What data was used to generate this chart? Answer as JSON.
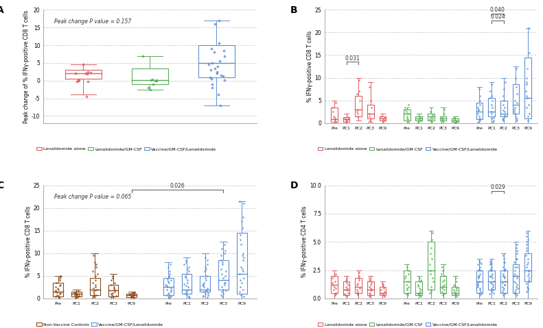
{
  "panel_A": {
    "title_label": "A",
    "annotation": "Peak change P value = 0.157",
    "ylabel": "Peak change of % IFNγ-positive CD8 T cells",
    "ylim": [
      -12,
      20
    ],
    "yticks": [
      -10,
      -5,
      0,
      5,
      10,
      15,
      20
    ],
    "colors": [
      "#e05c5c",
      "#5aaa5a",
      "#5b8fd4"
    ],
    "box_data": {
      "lena": {
        "q1": 0.5,
        "median": 2.0,
        "q3": 3.0,
        "whislo": -4.0,
        "whishi": 4.5
      },
      "gmcsf": {
        "q1": -1.0,
        "median": 0.2,
        "q3": 3.5,
        "whislo": -2.5,
        "whishi": 7.0
      },
      "vaccine": {
        "q1": 1.0,
        "median": 5.0,
        "q3": 10.0,
        "whislo": -7.0,
        "whishi": 17.0
      }
    },
    "jitter_lena": [
      2.5,
      2.0,
      2.0,
      1.8,
      4.5,
      0.2,
      0.1,
      -0.2,
      0.0,
      -0.3,
      -4.5,
      2.2
    ],
    "jitter_gmcsf": [
      0.1,
      0.0,
      0.2,
      0.0,
      7.0,
      -1.0,
      -2.0,
      -2.5,
      0.3
    ],
    "jitter_vaccine": [
      17.0,
      16.0,
      10.5,
      9.0,
      8.5,
      8.0,
      7.0,
      5.0,
      4.0,
      3.5,
      3.0,
      2.5,
      2.0,
      1.5,
      1.2,
      1.0,
      0.5,
      0.2,
      -1.0,
      -2.0,
      -4.0,
      -7.0,
      5.5,
      4.5
    ],
    "legend": [
      "Lenalidomide alone",
      "Lenalidomide/GM-CSF",
      "Vaccine/GM-CSF/Lenalidomide"
    ]
  },
  "panel_B": {
    "title_label": "B",
    "ylabel": "% IFNγ-positive CD8 T cells",
    "ylim": [
      0,
      25
    ],
    "yticks": [
      0,
      5,
      10,
      15,
      20,
      25
    ],
    "timepoints": [
      "Pre",
      "PC1",
      "PC2",
      "PC3",
      "PC9"
    ],
    "colors": [
      "#e05c5c",
      "#5aaa5a",
      "#5b8fd4"
    ],
    "box_data": {
      "lena": [
        {
          "q1": 0.2,
          "median": 0.8,
          "q3": 3.5,
          "whislo": 0.0,
          "whishi": 5.0,
          "dots": [
            0.5,
            1.5,
            2.5,
            3.5,
            4.5,
            0.3,
            0.8,
            1.2
          ]
        },
        {
          "q1": 0.3,
          "median": 0.8,
          "q3": 1.3,
          "whislo": 0.0,
          "whishi": 2.0,
          "dots": [
            0.5,
            0.8,
            1.0,
            1.3,
            0.2,
            0.6
          ]
        },
        {
          "q1": 1.5,
          "median": 3.0,
          "q3": 6.0,
          "whislo": 0.5,
          "whishi": 10.0,
          "dots": [
            2.0,
            3.0,
            5.0,
            6.5,
            7.0,
            9.5,
            1.5,
            2.5
          ]
        },
        {
          "q1": 1.0,
          "median": 2.0,
          "q3": 4.0,
          "whislo": 0.2,
          "whishi": 9.0,
          "dots": [
            1.5,
            2.0,
            3.5,
            5.0,
            8.0,
            0.5,
            1.0
          ]
        },
        {
          "q1": 0.5,
          "median": 1.0,
          "q3": 1.5,
          "whislo": 0.0,
          "whishi": 2.0,
          "dots": [
            0.5,
            0.8,
            1.2,
            1.5,
            0.3
          ]
        }
      ],
      "gmcsf": [
        {
          "q1": 0.5,
          "median": 2.0,
          "q3": 3.0,
          "whislo": 0.0,
          "whishi": 3.5,
          "dots": [
            0.8,
            1.5,
            2.5,
            3.0,
            0.3,
            1.0,
            2.0,
            4.0
          ]
        },
        {
          "q1": 0.5,
          "median": 1.0,
          "q3": 1.5,
          "whislo": 0.0,
          "whishi": 2.0,
          "dots": [
            0.5,
            0.8,
            1.2,
            1.5,
            0.3,
            0.6
          ]
        },
        {
          "q1": 0.5,
          "median": 1.5,
          "q3": 2.0,
          "whislo": 0.0,
          "whishi": 3.5,
          "dots": [
            0.8,
            1.2,
            1.8,
            2.5,
            0.3,
            0.6,
            1.0
          ]
        },
        {
          "q1": 0.5,
          "median": 1.0,
          "q3": 1.5,
          "whislo": 0.0,
          "whishi": 3.5,
          "dots": [
            0.5,
            0.8,
            1.2,
            2.0,
            3.0,
            0.3
          ]
        },
        {
          "q1": 0.2,
          "median": 0.5,
          "q3": 1.0,
          "whislo": 0.0,
          "whishi": 1.5,
          "dots": [
            0.3,
            0.5,
            0.8,
            1.2,
            0.1
          ]
        }
      ],
      "vaccine": [
        {
          "q1": 0.8,
          "median": 2.5,
          "q3": 4.5,
          "whislo": 0.0,
          "whishi": 8.0,
          "dots": [
            0.5,
            1.0,
            2.0,
            3.0,
            4.0,
            5.0,
            6.0,
            7.5,
            0.2,
            0.8,
            1.5,
            2.8,
            3.5
          ]
        },
        {
          "q1": 1.5,
          "median": 2.5,
          "q3": 5.5,
          "whislo": 0.0,
          "whishi": 9.0,
          "dots": [
            0.5,
            1.0,
            2.0,
            3.5,
            5.0,
            6.0,
            7.0,
            8.5,
            0.2,
            1.2,
            2.5,
            4.0,
            5.5
          ]
        },
        {
          "q1": 1.5,
          "median": 2.0,
          "q3": 5.0,
          "whislo": 0.0,
          "whishi": 10.0,
          "dots": [
            0.5,
            1.0,
            1.8,
            2.5,
            4.0,
            6.0,
            7.5,
            9.0,
            0.8,
            1.5,
            2.8,
            3.5,
            5.0
          ]
        },
        {
          "q1": 2.0,
          "median": 4.0,
          "q3": 8.5,
          "whislo": 0.0,
          "whishi": 12.5,
          "dots": [
            0.5,
            1.5,
            2.5,
            3.5,
            5.0,
            6.5,
            8.0,
            10.0,
            12.0,
            1.0,
            2.0,
            3.0,
            4.5
          ]
        },
        {
          "q1": 1.0,
          "median": 5.5,
          "q3": 14.5,
          "whislo": 0.0,
          "whishi": 21.0,
          "dots": [
            0.5,
            2.0,
            4.0,
            5.5,
            7.0,
            8.5,
            10.0,
            12.0,
            15.5,
            21.0,
            1.5,
            3.5,
            6.0,
            9.0
          ]
        }
      ]
    },
    "legend": [
      "Lenalidomide alone",
      "Lenalidomide/GM-CSF",
      "Vaccine/GM-CSF/Lenalidomide"
    ]
  },
  "panel_C": {
    "title_label": "C",
    "annotation": "Peak change P value = 0.065",
    "ylabel": "% IFNγ-positive CD8 T cells",
    "ylim": [
      0,
      25
    ],
    "yticks": [
      0,
      5,
      10,
      15,
      20,
      25
    ],
    "timepoints": [
      "Pre",
      "PC1",
      "PC2",
      "PC3",
      "PC9"
    ],
    "colors": [
      "#8B4513",
      "#5b8fd4"
    ],
    "box_data": {
      "control": [
        {
          "q1": 0.5,
          "median": 1.5,
          "q3": 3.5,
          "whislo": 0.0,
          "whishi": 5.0,
          "dots": [
            0.3,
            0.8,
            1.5,
            2.5,
            4.0,
            5.0,
            0.2,
            1.0,
            2.0,
            3.0,
            4.5,
            0.5,
            1.2,
            1.8,
            2.8,
            3.5,
            4.8,
            0.6,
            1.4,
            2.2
          ]
        },
        {
          "q1": 0.5,
          "median": 1.0,
          "q3": 1.5,
          "whislo": 0.0,
          "whishi": 2.0,
          "dots": [
            0.3,
            0.6,
            0.8,
            1.0,
            1.3,
            1.5,
            0.4,
            0.7,
            1.1,
            1.4,
            0.5,
            0.9,
            1.2,
            1.6,
            0.2,
            0.8
          ]
        },
        {
          "q1": 0.8,
          "median": 2.0,
          "q3": 4.5,
          "whislo": 0.0,
          "whishi": 10.0,
          "dots": [
            0.5,
            1.0,
            2.0,
            3.5,
            5.0,
            7.0,
            9.5,
            0.3,
            1.5,
            2.5,
            4.0,
            6.0,
            8.0,
            0.8,
            1.8,
            3.0,
            5.5,
            7.5,
            0.6,
            2.2
          ]
        },
        {
          "q1": 0.5,
          "median": 1.8,
          "q3": 3.0,
          "whislo": 0.0,
          "whishi": 5.5,
          "dots": [
            0.3,
            0.8,
            1.5,
            2.5,
            4.0,
            5.0,
            0.5,
            1.0,
            2.0,
            3.0,
            4.5,
            0.4,
            1.2,
            2.2,
            3.5,
            0.6
          ]
        },
        {
          "q1": 0.3,
          "median": 0.8,
          "q3": 1.0,
          "whislo": 0.0,
          "whishi": 1.5,
          "dots": [
            0.2,
            0.5,
            0.8,
            1.0,
            1.3,
            0.3,
            0.6,
            0.9,
            1.2,
            0.4,
            0.7,
            1.1,
            0.5,
            0.8,
            1.4
          ]
        }
      ],
      "vaccine": [
        {
          "q1": 0.8,
          "median": 2.5,
          "q3": 4.5,
          "whislo": 0.0,
          "whishi": 8.0,
          "dots": [
            0.5,
            1.0,
            2.0,
            3.0,
            4.0,
            5.0,
            6.0,
            7.5,
            0.2,
            0.8,
            1.5,
            2.8,
            3.5,
            4.8,
            0.3,
            1.2,
            2.3,
            3.8,
            5.5,
            7.0,
            0.6,
            1.8,
            2.6,
            4.2
          ]
        },
        {
          "q1": 1.0,
          "median": 2.0,
          "q3": 5.5,
          "whislo": 0.0,
          "whishi": 9.0,
          "dots": [
            0.5,
            1.0,
            2.0,
            3.5,
            5.0,
            6.0,
            7.0,
            8.5,
            0.2,
            1.2,
            2.5,
            4.0,
            5.5,
            7.5,
            0.3,
            1.5,
            2.8,
            4.5,
            6.5,
            8.0,
            0.8,
            1.8,
            3.2,
            4.8
          ]
        },
        {
          "q1": 1.5,
          "median": 2.0,
          "q3": 5.0,
          "whislo": 0.0,
          "whishi": 10.0,
          "dots": [
            0.5,
            1.0,
            1.8,
            2.5,
            4.0,
            6.0,
            7.5,
            9.0,
            0.8,
            1.5,
            2.8,
            3.5,
            5.0,
            7.0,
            0.3,
            1.2,
            2.2,
            3.2,
            4.5,
            6.5,
            8.5,
            0.6,
            1.8,
            3.0
          ]
        },
        {
          "q1": 2.0,
          "median": 4.0,
          "q3": 8.5,
          "whislo": 0.0,
          "whishi": 12.5,
          "dots": [
            0.5,
            1.5,
            2.5,
            3.5,
            5.0,
            6.5,
            8.0,
            10.0,
            12.0,
            1.0,
            2.0,
            3.0,
            4.5,
            6.0,
            7.5,
            9.5,
            11.0,
            0.8,
            1.8,
            3.5,
            5.5,
            8.5,
            10.5
          ]
        },
        {
          "q1": 1.0,
          "median": 5.5,
          "q3": 14.5,
          "whislo": 0.0,
          "whishi": 21.5,
          "dots": [
            0.5,
            2.0,
            4.0,
            5.5,
            7.0,
            8.5,
            10.0,
            12.0,
            15.5,
            21.0,
            1.5,
            3.5,
            6.0,
            9.0,
            13.0,
            17.0,
            0.8,
            2.5,
            4.5,
            6.5,
            9.5,
            14.0,
            18.0,
            21.5
          ]
        }
      ]
    },
    "legend": [
      "Non-Vaccine Controls",
      "Vaccine/GM-CSF/Lenalidomide"
    ]
  },
  "panel_D": {
    "title_label": "D",
    "ylabel": "% IFNγ-positive CD4 T cells",
    "ylim": [
      0,
      10
    ],
    "yticks": [
      0.0,
      2.5,
      5.0,
      7.5,
      10.0
    ],
    "timepoints": [
      "Pre",
      "PC1",
      "PC2",
      "PC3",
      "PC9"
    ],
    "colors": [
      "#e05c5c",
      "#5aaa5a",
      "#5b8fd4"
    ],
    "box_data": {
      "lena": [
        {
          "q1": 0.5,
          "median": 1.2,
          "q3": 2.0,
          "whislo": 0.0,
          "whishi": 2.5,
          "dots": [
            0.3,
            0.8,
            1.2,
            1.8,
            2.2,
            0.5,
            1.0,
            1.5,
            2.0,
            0.4,
            0.9,
            1.4
          ]
        },
        {
          "q1": 0.3,
          "median": 0.8,
          "q3": 1.5,
          "whislo": 0.0,
          "whishi": 2.0,
          "dots": [
            0.2,
            0.5,
            0.8,
            1.2,
            1.6,
            0.3,
            0.7,
            1.0,
            1.4,
            0.4,
            0.9,
            1.8
          ]
        },
        {
          "q1": 0.5,
          "median": 1.0,
          "q3": 1.8,
          "whislo": 0.0,
          "whishi": 2.5,
          "dots": [
            0.3,
            0.6,
            0.9,
            1.2,
            1.6,
            2.0,
            0.4,
            0.8,
            1.3,
            1.8,
            2.3,
            0.5
          ]
        },
        {
          "q1": 0.3,
          "median": 0.8,
          "q3": 1.5,
          "whislo": 0.0,
          "whishi": 2.0,
          "dots": [
            0.2,
            0.5,
            0.8,
            1.2,
            1.6,
            0.3,
            0.7,
            1.0,
            1.4,
            1.8,
            0.4,
            0.9
          ]
        },
        {
          "q1": 0.3,
          "median": 0.5,
          "q3": 1.0,
          "whislo": 0.0,
          "whishi": 1.5,
          "dots": [
            0.2,
            0.4,
            0.6,
            0.8,
            1.1,
            1.3,
            0.3,
            0.5,
            0.9,
            1.2
          ]
        }
      ],
      "gmcsf": [
        {
          "q1": 0.5,
          "median": 1.5,
          "q3": 2.5,
          "whislo": 0.0,
          "whishi": 3.0,
          "dots": [
            0.3,
            0.8,
            1.2,
            1.8,
            2.2,
            2.8,
            0.5,
            1.0,
            1.5,
            2.0,
            2.5,
            0.4,
            0.9
          ]
        },
        {
          "q1": 0.3,
          "median": 0.5,
          "q3": 1.5,
          "whislo": 0.0,
          "whishi": 2.0,
          "dots": [
            0.2,
            0.4,
            0.6,
            0.9,
            1.2,
            1.6,
            0.3,
            0.5,
            0.8,
            1.1,
            1.5,
            1.8,
            0.4
          ]
        },
        {
          "q1": 0.8,
          "median": 2.5,
          "q3": 5.0,
          "whislo": 0.0,
          "whishi": 6.0,
          "dots": [
            0.5,
            1.0,
            1.8,
            2.5,
            3.5,
            4.5,
            5.8,
            0.8,
            1.5,
            2.2,
            3.0,
            4.0,
            5.2,
            0.6
          ]
        },
        {
          "q1": 0.5,
          "median": 1.0,
          "q3": 2.0,
          "whislo": 0.0,
          "whishi": 3.0,
          "dots": [
            0.3,
            0.6,
            0.9,
            1.2,
            1.6,
            2.2,
            2.8,
            0.4,
            0.8,
            1.1,
            1.5,
            2.0,
            2.5,
            0.5
          ]
        },
        {
          "q1": 0.3,
          "median": 0.5,
          "q3": 1.0,
          "whislo": 0.0,
          "whishi": 2.0,
          "dots": [
            0.2,
            0.4,
            0.6,
            0.8,
            1.1,
            1.5,
            1.8,
            0.3,
            0.5,
            0.9,
            1.2,
            0.4,
            0.7
          ]
        }
      ],
      "vaccine": [
        {
          "q1": 0.5,
          "median": 1.5,
          "q3": 2.5,
          "whislo": 0.0,
          "whishi": 3.5,
          "dots": [
            0.3,
            0.8,
            1.2,
            1.8,
            2.2,
            2.8,
            3.2,
            0.5,
            1.0,
            1.5,
            2.0,
            2.5,
            3.0,
            0.4,
            0.9,
            1.4,
            2.0,
            2.6,
            3.3,
            0.6,
            1.2,
            1.9,
            2.5,
            3.1
          ]
        },
        {
          "q1": 0.8,
          "median": 1.5,
          "q3": 2.5,
          "whislo": 0.0,
          "whishi": 3.5,
          "dots": [
            0.5,
            0.9,
            1.3,
            1.8,
            2.2,
            2.8,
            3.2,
            0.6,
            1.0,
            1.5,
            2.0,
            2.5,
            3.0,
            0.4,
            0.8,
            1.4,
            2.0,
            2.6,
            3.3,
            0.7,
            1.2,
            1.9,
            2.5,
            3.1
          ]
        },
        {
          "q1": 0.5,
          "median": 1.5,
          "q3": 2.5,
          "whislo": 0.0,
          "whishi": 4.0,
          "dots": [
            0.3,
            0.8,
            1.2,
            1.8,
            2.2,
            2.8,
            3.5,
            0.5,
            1.0,
            1.5,
            2.0,
            2.5,
            3.2,
            3.8,
            0.4,
            0.9,
            1.4,
            2.0,
            2.6,
            3.2,
            0.6,
            1.2,
            1.9,
            2.5
          ]
        },
        {
          "q1": 0.5,
          "median": 2.0,
          "q3": 3.0,
          "whislo": 0.0,
          "whishi": 5.0,
          "dots": [
            0.3,
            0.8,
            1.5,
            2.2,
            2.8,
            3.5,
            4.5,
            0.5,
            1.0,
            1.8,
            2.5,
            3.2,
            4.0,
            4.8,
            0.4,
            0.9,
            1.4,
            2.0,
            2.8,
            3.5,
            4.2,
            0.6,
            1.2,
            2.0
          ]
        },
        {
          "q1": 1.5,
          "median": 2.5,
          "q3": 4.0,
          "whislo": 0.0,
          "whishi": 6.0,
          "dots": [
            0.8,
            1.5,
            2.2,
            3.0,
            3.8,
            4.8,
            5.5,
            1.0,
            1.8,
            2.5,
            3.2,
            4.2,
            5.0,
            5.8,
            0.6,
            1.3,
            2.0,
            2.8,
            3.5,
            4.5,
            5.2,
            0.9,
            1.6,
            2.4
          ]
        }
      ]
    },
    "legend": [
      "Lenalidomide alone",
      "Lenalidomide/GM-CSF",
      "Vaccine/GM-CSF/Lenalidomide"
    ]
  },
  "bg_color": "#ffffff"
}
